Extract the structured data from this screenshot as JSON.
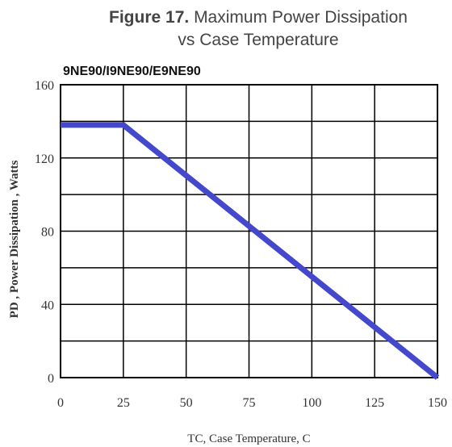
{
  "title": {
    "figure": "Figure 17.",
    "line1": "Maximum Power Dissipation",
    "line2": "vs Case Temperature"
  },
  "part_numbers": "9NE90/I9NE90/E9NE90",
  "colors": {
    "line": "#4448cc",
    "grid": "#000000",
    "axis": "#000000"
  },
  "chart_data": {
    "type": "line",
    "title": "Maximum Power Dissipation vs Case Temperature",
    "xlabel": "TC, Case Temperature, C",
    "ylabel": "PD , Power Dissipation ,  Watts",
    "xlim": [
      0,
      150
    ],
    "ylim": [
      0,
      160
    ],
    "xticks": [
      0,
      25,
      50,
      75,
      100,
      125,
      150
    ],
    "yticks": [
      0,
      40,
      80,
      120,
      160
    ],
    "grid": true,
    "series": [
      {
        "x": [
          0,
          25,
          150
        ],
        "y": [
          138,
          138,
          0
        ]
      }
    ]
  }
}
